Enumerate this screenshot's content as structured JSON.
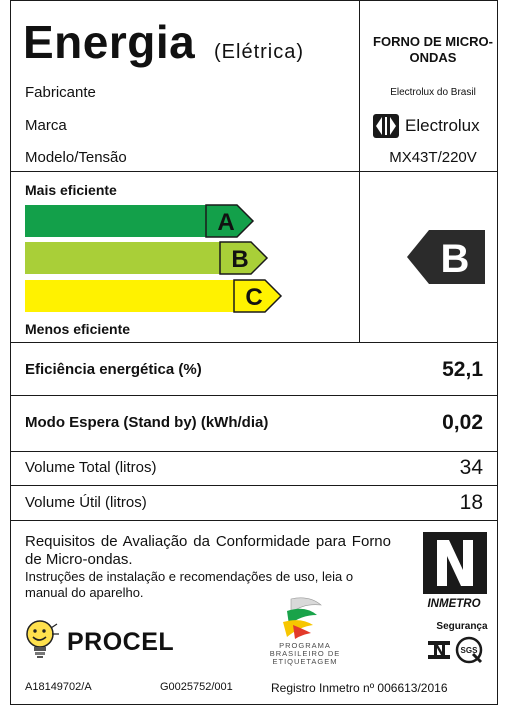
{
  "header": {
    "title": "Energia",
    "subtitle": "(Elétrica)",
    "product_type": "FORNO DE MICRO-ONDAS"
  },
  "fields": {
    "manufacturer_label": "Fabricante",
    "brand_label": "Marca",
    "model_label": "Modelo/Tensão",
    "manufacturer_value": "Electrolux do Brasil",
    "brand_value": "Electrolux",
    "model_value": "MX43T/220V"
  },
  "efficiency_scale": {
    "top_label": "Mais eficiente",
    "bottom_label": "Menos eficiente",
    "classes": [
      {
        "letter": "A",
        "color": "#13a04a"
      },
      {
        "letter": "B",
        "color": "#a9cf38"
      },
      {
        "letter": "C",
        "color": "#fff200"
      }
    ],
    "rating": "B",
    "rating_color": "#2b2b2b"
  },
  "rows": [
    {
      "label": "Eficiência energética (%)",
      "value": "52,1"
    },
    {
      "label": "Modo Espera (Stand by) (kWh/dia)",
      "value": "0,02"
    },
    {
      "label": "Volume Total (litros)",
      "value": "34"
    },
    {
      "label": "Volume Útil (litros)",
      "value": "18"
    }
  ],
  "bottom": {
    "requirements": "Requisitos de Avaliação da Conformidade para Forno de Micro-ondas.",
    "instructions": "Instruções de instalação e recomendações de uso, leia o manual do aparelho.",
    "procel": "PROCEL",
    "pbe": "PROGRAMA BRASILEIRO DE ETIQUETAGEM",
    "inmetro": "INMETRO",
    "seguranca": "Segurança",
    "sgs": "SGS"
  },
  "footer": {
    "code1": "A18149702/A",
    "code2": "G0025752/001",
    "registry": "Registro Inmetro nº 006613/2016"
  }
}
